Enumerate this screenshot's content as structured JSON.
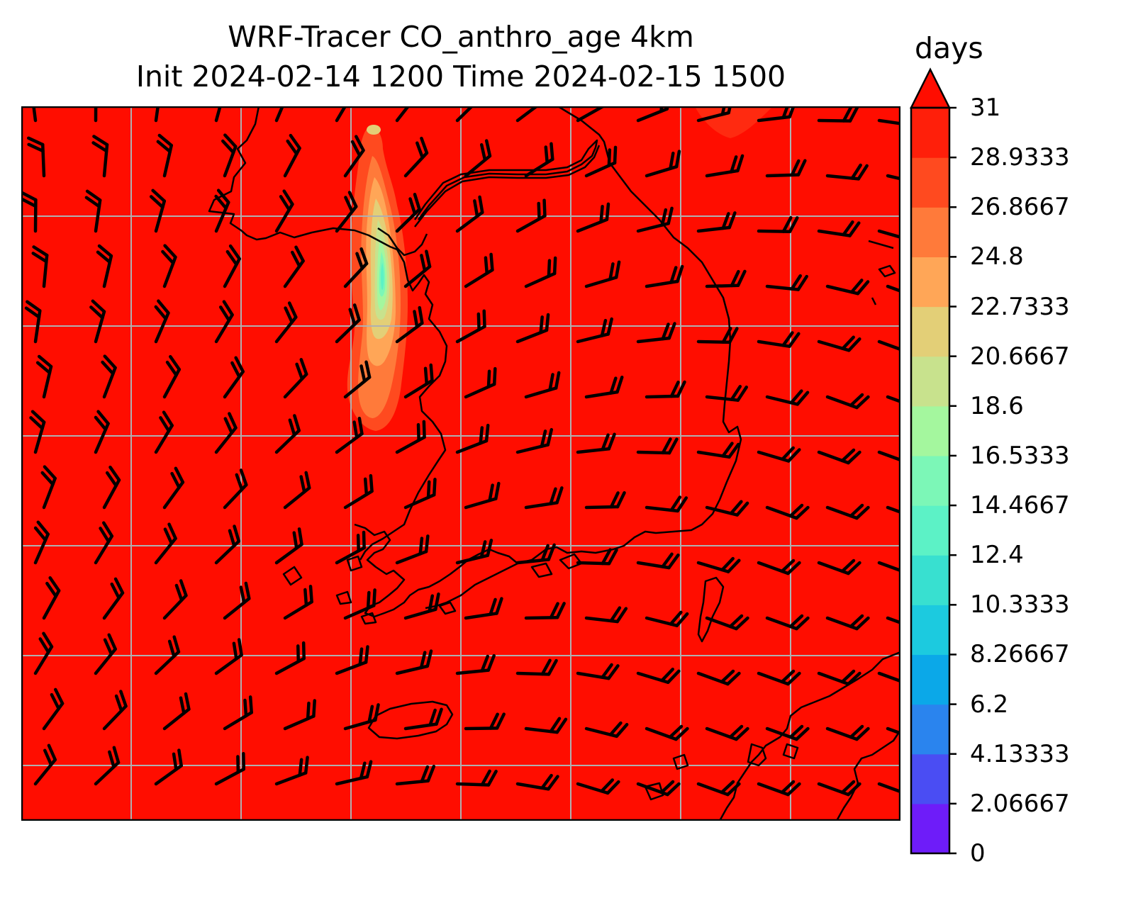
{
  "title": {
    "line1": "WRF-Tracer CO_anthro_age 4km",
    "line2": "Init 2024-02-14 1200 Time 2024-02-15 1500"
  },
  "map": {
    "field": "CO_anthro_age",
    "background_color": "#ff0d00",
    "gridline_color": "#b0b0b0",
    "coastline_color": "#000000",
    "overlay": "wind barbs",
    "plume_colors": [
      "#ff4a1f",
      "#ff7a3a",
      "#ffa657",
      "#e3cf77",
      "#c8e28d",
      "#a4f79e",
      "#7cf7b7",
      "#5cf2c6"
    ]
  },
  "colorbar": {
    "unit": "days",
    "extend": "max",
    "tick_labels": [
      "0",
      "2.06667",
      "4.13333",
      "6.2",
      "8.26667",
      "10.3333",
      "12.4",
      "14.4667",
      "16.5333",
      "18.6",
      "20.6667",
      "22.7333",
      "24.8",
      "26.8667",
      "28.9333",
      "31"
    ],
    "colors": [
      "#6e1cf9",
      "#4a4df3",
      "#2a84ee",
      "#0ba8e8",
      "#1ccadf",
      "#38e0d0",
      "#5cf2c6",
      "#7cf7b7",
      "#a4f79e",
      "#c8e28d",
      "#e3cf77",
      "#ffa657",
      "#ff7a3a",
      "#ff4a1f",
      "#ff1f0a"
    ],
    "extend_color": "#ff0d00"
  }
}
